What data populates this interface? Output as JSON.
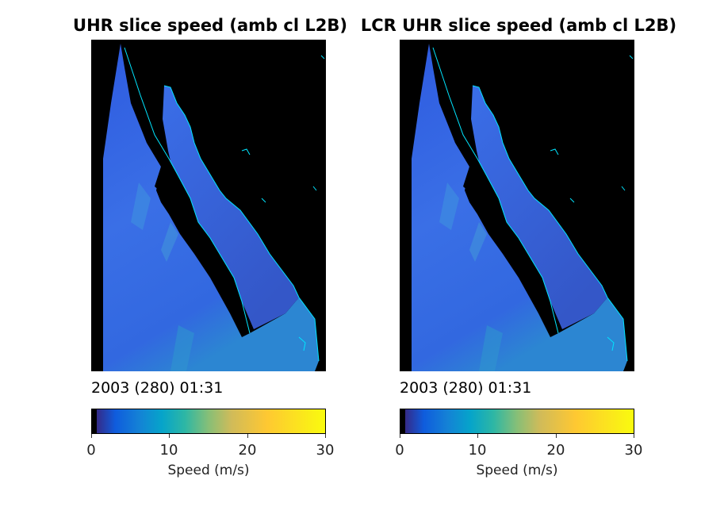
{
  "panels": [
    {
      "title": "UHR slice speed (amb cl L2B)",
      "timestamp": "2003 (280) 01:31",
      "colorbar_label": "Speed (m/s)",
      "colorbar_ticks": [
        "0",
        "10",
        "20",
        "30"
      ]
    },
    {
      "title": "LCR UHR slice speed (amb cl L2B)",
      "timestamp": "2003 (280) 01:31",
      "colorbar_label": "Speed (m/s)",
      "colorbar_ticks": [
        "0",
        "10",
        "20",
        "30"
      ]
    }
  ],
  "chart_data": [
    {
      "type": "heatmap",
      "title": "UHR slice speed (amb cl L2B)",
      "colorbar": {
        "label": "Speed (m/s)",
        "range": [
          0,
          30
        ],
        "ticks": [
          0,
          10,
          20,
          30
        ],
        "colormap": "parula"
      },
      "background_color": "#000000",
      "coastline_color": "#00ffff"
    },
    {
      "type": "heatmap",
      "title": "LCR UHR slice speed (amb cl L2B)",
      "colorbar": {
        "label": "Speed (m/s)",
        "range": [
          0,
          30
        ],
        "ticks": [
          0,
          10,
          20,
          30
        ],
        "colormap": "parula"
      },
      "background_color": "#000000",
      "coastline_color": "#00ffff"
    }
  ]
}
